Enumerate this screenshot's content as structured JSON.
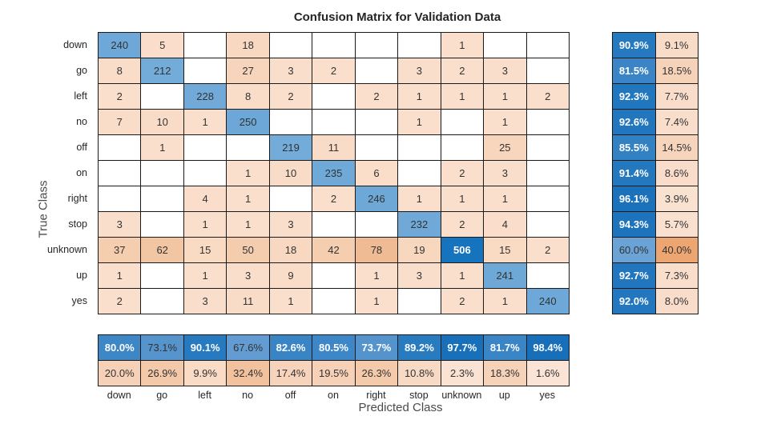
{
  "title": "Confusion Matrix for Validation Data",
  "x_axis_label": "Predicted Class",
  "y_axis_label": "True Class",
  "chart_data": {
    "type": "heatmap",
    "title": "Confusion Matrix for Validation Data",
    "xlabel": "Predicted Class",
    "ylabel": "True Class",
    "categories": [
      "down",
      "go",
      "left",
      "no",
      "off",
      "on",
      "right",
      "stop",
      "unknown",
      "up",
      "yes"
    ],
    "matrix": [
      [
        240,
        5,
        0,
        18,
        0,
        0,
        0,
        0,
        1,
        0,
        0
      ],
      [
        8,
        212,
        0,
        27,
        3,
        2,
        0,
        3,
        2,
        3,
        0
      ],
      [
        2,
        0,
        228,
        8,
        2,
        0,
        2,
        1,
        1,
        1,
        2
      ],
      [
        7,
        10,
        1,
        250,
        0,
        0,
        0,
        1,
        0,
        1,
        0
      ],
      [
        0,
        1,
        0,
        0,
        219,
        11,
        0,
        0,
        0,
        25,
        0
      ],
      [
        0,
        0,
        0,
        1,
        10,
        235,
        6,
        0,
        2,
        3,
        0
      ],
      [
        0,
        0,
        4,
        1,
        0,
        2,
        246,
        1,
        1,
        1,
        0
      ],
      [
        3,
        0,
        1,
        1,
        3,
        0,
        0,
        232,
        2,
        4,
        0
      ],
      [
        37,
        62,
        15,
        50,
        18,
        42,
        78,
        19,
        506,
        15,
        2
      ],
      [
        1,
        0,
        1,
        3,
        9,
        0,
        1,
        3,
        1,
        241,
        0
      ],
      [
        2,
        0,
        3,
        11,
        1,
        0,
        1,
        0,
        2,
        1,
        240
      ]
    ],
    "row_summary_pct": [
      [
        90.9,
        9.1
      ],
      [
        81.5,
        18.5
      ],
      [
        92.3,
        7.7
      ],
      [
        92.6,
        7.4
      ],
      [
        85.5,
        14.5
      ],
      [
        91.4,
        8.6
      ],
      [
        96.1,
        3.9
      ],
      [
        94.3,
        5.7
      ],
      [
        60.0,
        40.0
      ],
      [
        92.7,
        7.3
      ],
      [
        92.0,
        8.0
      ]
    ],
    "column_summary_pct": [
      [
        80.0,
        20.0
      ],
      [
        73.1,
        26.9
      ],
      [
        90.1,
        9.9
      ],
      [
        67.6,
        32.4
      ],
      [
        82.6,
        17.4
      ],
      [
        80.5,
        19.5
      ],
      [
        73.7,
        26.3
      ],
      [
        89.2,
        10.8
      ],
      [
        97.7,
        2.3
      ],
      [
        81.7,
        18.3
      ],
      [
        98.4,
        1.6
      ]
    ]
  },
  "colors": {
    "background": "#ffffff",
    "border": "#1a1a1a",
    "text_dark": "#333333",
    "text_light": "#ffffff",
    "label_gray": "#4a4a4a",
    "cell_empty": "#ffffff",
    "orange_stops": [
      [
        1,
        "#fadfcd"
      ],
      [
        11,
        "#f9dcc7"
      ],
      [
        19,
        "#f8d7bf"
      ],
      [
        27,
        "#f7d5bc"
      ],
      [
        37,
        "#f5ceb0"
      ],
      [
        50,
        "#f4cdae"
      ],
      [
        78,
        "#efbb95"
      ]
    ],
    "diag_blue_stops": [
      [
        212,
        "#74acd9"
      ],
      [
        250,
        "#6ca7d7"
      ],
      [
        506,
        "#1673bd"
      ]
    ],
    "summary_blue_stops": [
      [
        60,
        "#6ba3d6"
      ],
      [
        67.6,
        "#639cd2"
      ],
      [
        73.7,
        "#5493cc"
      ],
      [
        80,
        "#3e87c7"
      ],
      [
        86,
        "#3180c2"
      ],
      [
        92,
        "#2277be"
      ],
      [
        98.4,
        "#176fb9"
      ]
    ],
    "summary_orange_stops": [
      [
        1.6,
        "#fbe4d5"
      ],
      [
        9,
        "#f9dcc8"
      ],
      [
        14.5,
        "#f7d5bd"
      ],
      [
        20,
        "#f6d1b7"
      ],
      [
        26.9,
        "#f4c9aa"
      ],
      [
        32.4,
        "#f2c29e"
      ],
      [
        40,
        "#eda672"
      ]
    ],
    "white_text_min_value": 300,
    "white_text_min_pct": 73.5
  }
}
